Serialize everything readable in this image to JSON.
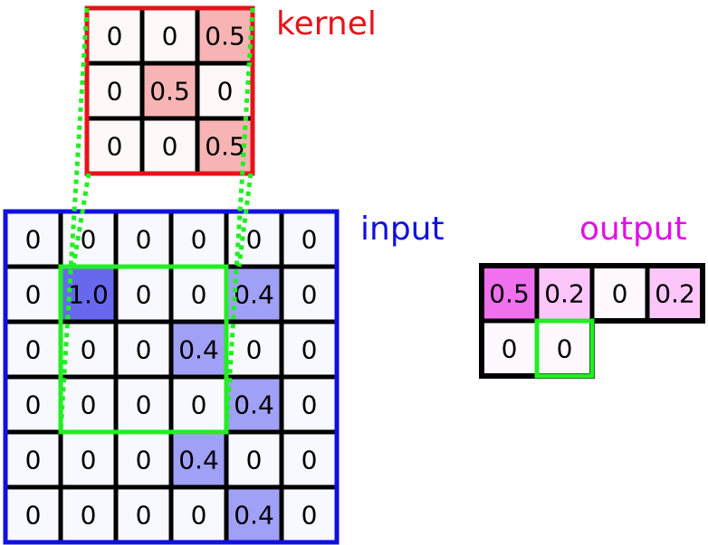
{
  "labels": {
    "kernel": "kernel",
    "input": "input",
    "output": "output"
  },
  "colors": {
    "kernel": "#e8121a",
    "input": "#1010e0",
    "output": "#e010e8",
    "highlight": "#22ee22",
    "kernel_zero": "#fff8f8",
    "kernel_value": "#f8b4b4",
    "input_zero": "#f8f8ff",
    "input_strong": "#6868ee",
    "input_weak": "#a0a0f6",
    "output_zero": "#fff8ff",
    "output_strong": "#f070ee",
    "output_weak": "#fcc6fa"
  },
  "kernel": [
    [
      "0",
      "0",
      "0.5"
    ],
    [
      "0",
      "0.5",
      "0"
    ],
    [
      "0",
      "0",
      "0.5"
    ]
  ],
  "input": [
    [
      "0",
      "0",
      "0",
      "0",
      "0",
      "0"
    ],
    [
      "0",
      "1.0",
      "0",
      "0",
      "0.4",
      "0"
    ],
    [
      "0",
      "0",
      "0",
      "0.4",
      "0",
      "0"
    ],
    [
      "0",
      "0",
      "0",
      "0",
      "0.4",
      "0"
    ],
    [
      "0",
      "0",
      "0",
      "0.4",
      "0",
      "0"
    ],
    [
      "0",
      "0",
      "0",
      "0",
      "0.4",
      "0"
    ]
  ],
  "output": [
    [
      "0.5",
      "0.2",
      "0",
      "0.2"
    ],
    [
      "0",
      "0"
    ]
  ],
  "highlight": {
    "input_window_top_left_row": 1,
    "input_window_top_left_col": 1,
    "window_size": 3,
    "output_row": 1,
    "output_col": 1
  }
}
